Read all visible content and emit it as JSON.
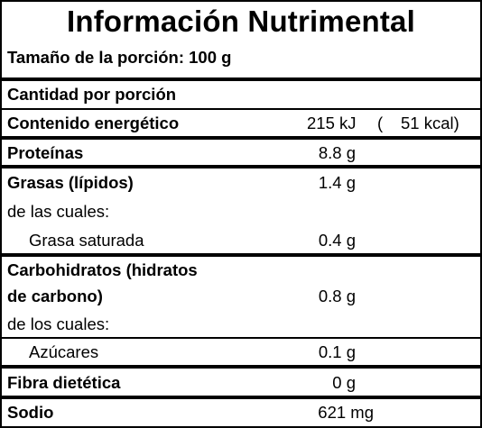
{
  "label": {
    "title": "Información Nutrimental",
    "serving": "Tamaño de la porción: 100 g",
    "amount_header": "Cantidad por porción"
  },
  "rows": {
    "energy": {
      "label": "Contenido energético",
      "kj": "215 kJ",
      "paren_open": "(",
      "kcal": "51 kcal)"
    },
    "protein": {
      "label": "Proteínas",
      "value": "8.8 g"
    },
    "fat": {
      "label": "Grasas (lípidos)",
      "value": "1.4 g",
      "of_which": "de las cuales:",
      "saturated_label": "Grasa saturada",
      "saturated_value": "0.4 g"
    },
    "carbs": {
      "label_line1": "Carbohidratos (hidratos",
      "label_line2": "de carbono)",
      "value": "0.8 g",
      "of_which": "de los cuales:",
      "sugars_label": "Azúcares",
      "sugars_value": "0.1 g"
    },
    "fiber": {
      "label": "Fibra dietética",
      "value": "0 g"
    },
    "sodium": {
      "label": "Sodio",
      "value": "621 mg"
    }
  }
}
